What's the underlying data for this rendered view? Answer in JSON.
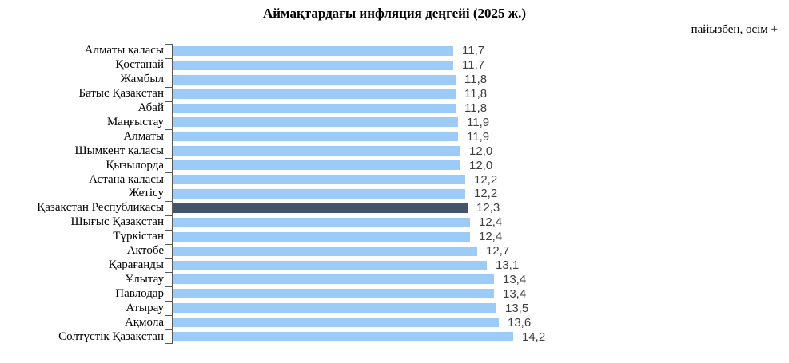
{
  "header": {
    "title": "Аймақтардағы инфляция деңгейі (2025 ж.)",
    "unit_note": "пайызбен, өсім +"
  },
  "colors": {
    "bar": "#9CCBF8",
    "highlight_bar": "#44546A",
    "axis": "#595959",
    "value_text": "#3F3F3F",
    "label_text": "#000000"
  },
  "chart_data": {
    "type": "bar",
    "orientation": "horizontal",
    "title": "Аймақтардағы инфляция деңгейі (2025 ж.)",
    "subtitle": "пайызбен, өсім +",
    "categories": [
      "Алматы қаласы",
      "Қостанай",
      "Жамбыл",
      "Батыс Қазақстан",
      "Абай",
      "Маңғыстау",
      "Алматы",
      "Шымкент қаласы",
      "Қызылорда",
      "Астана қаласы",
      "Жетісу",
      "Қазақстан Республикасы",
      "Шығыс Қазақстан",
      "Түркістан",
      "Ақтөбе",
      "Қарағанды",
      "Ұлытау",
      "Павлодар",
      "Атырау",
      "Ақмола",
      "Солтүстік Қазақстан"
    ],
    "values": [
      11.7,
      11.7,
      11.8,
      11.8,
      11.8,
      11.9,
      11.9,
      12.0,
      12.0,
      12.2,
      12.2,
      12.3,
      12.4,
      12.4,
      12.7,
      13.1,
      13.4,
      13.4,
      13.5,
      13.6,
      14.2
    ],
    "value_labels": [
      "11,7",
      "11,7",
      "11,8",
      "11,8",
      "11,8",
      "11,9",
      "11,9",
      "12,0",
      "12,0",
      "12,2",
      "12,2",
      "12,3",
      "12,4",
      "12,4",
      "12,7",
      "13,1",
      "13,4",
      "13,4",
      "13,5",
      "13,6",
      "14,2"
    ],
    "highlight_category": "Қазақстан Республикасы",
    "highlight_index": 11,
    "xlim": [
      0,
      14.2
    ],
    "grid": false,
    "legend": "none",
    "value_labels_shown": true
  }
}
